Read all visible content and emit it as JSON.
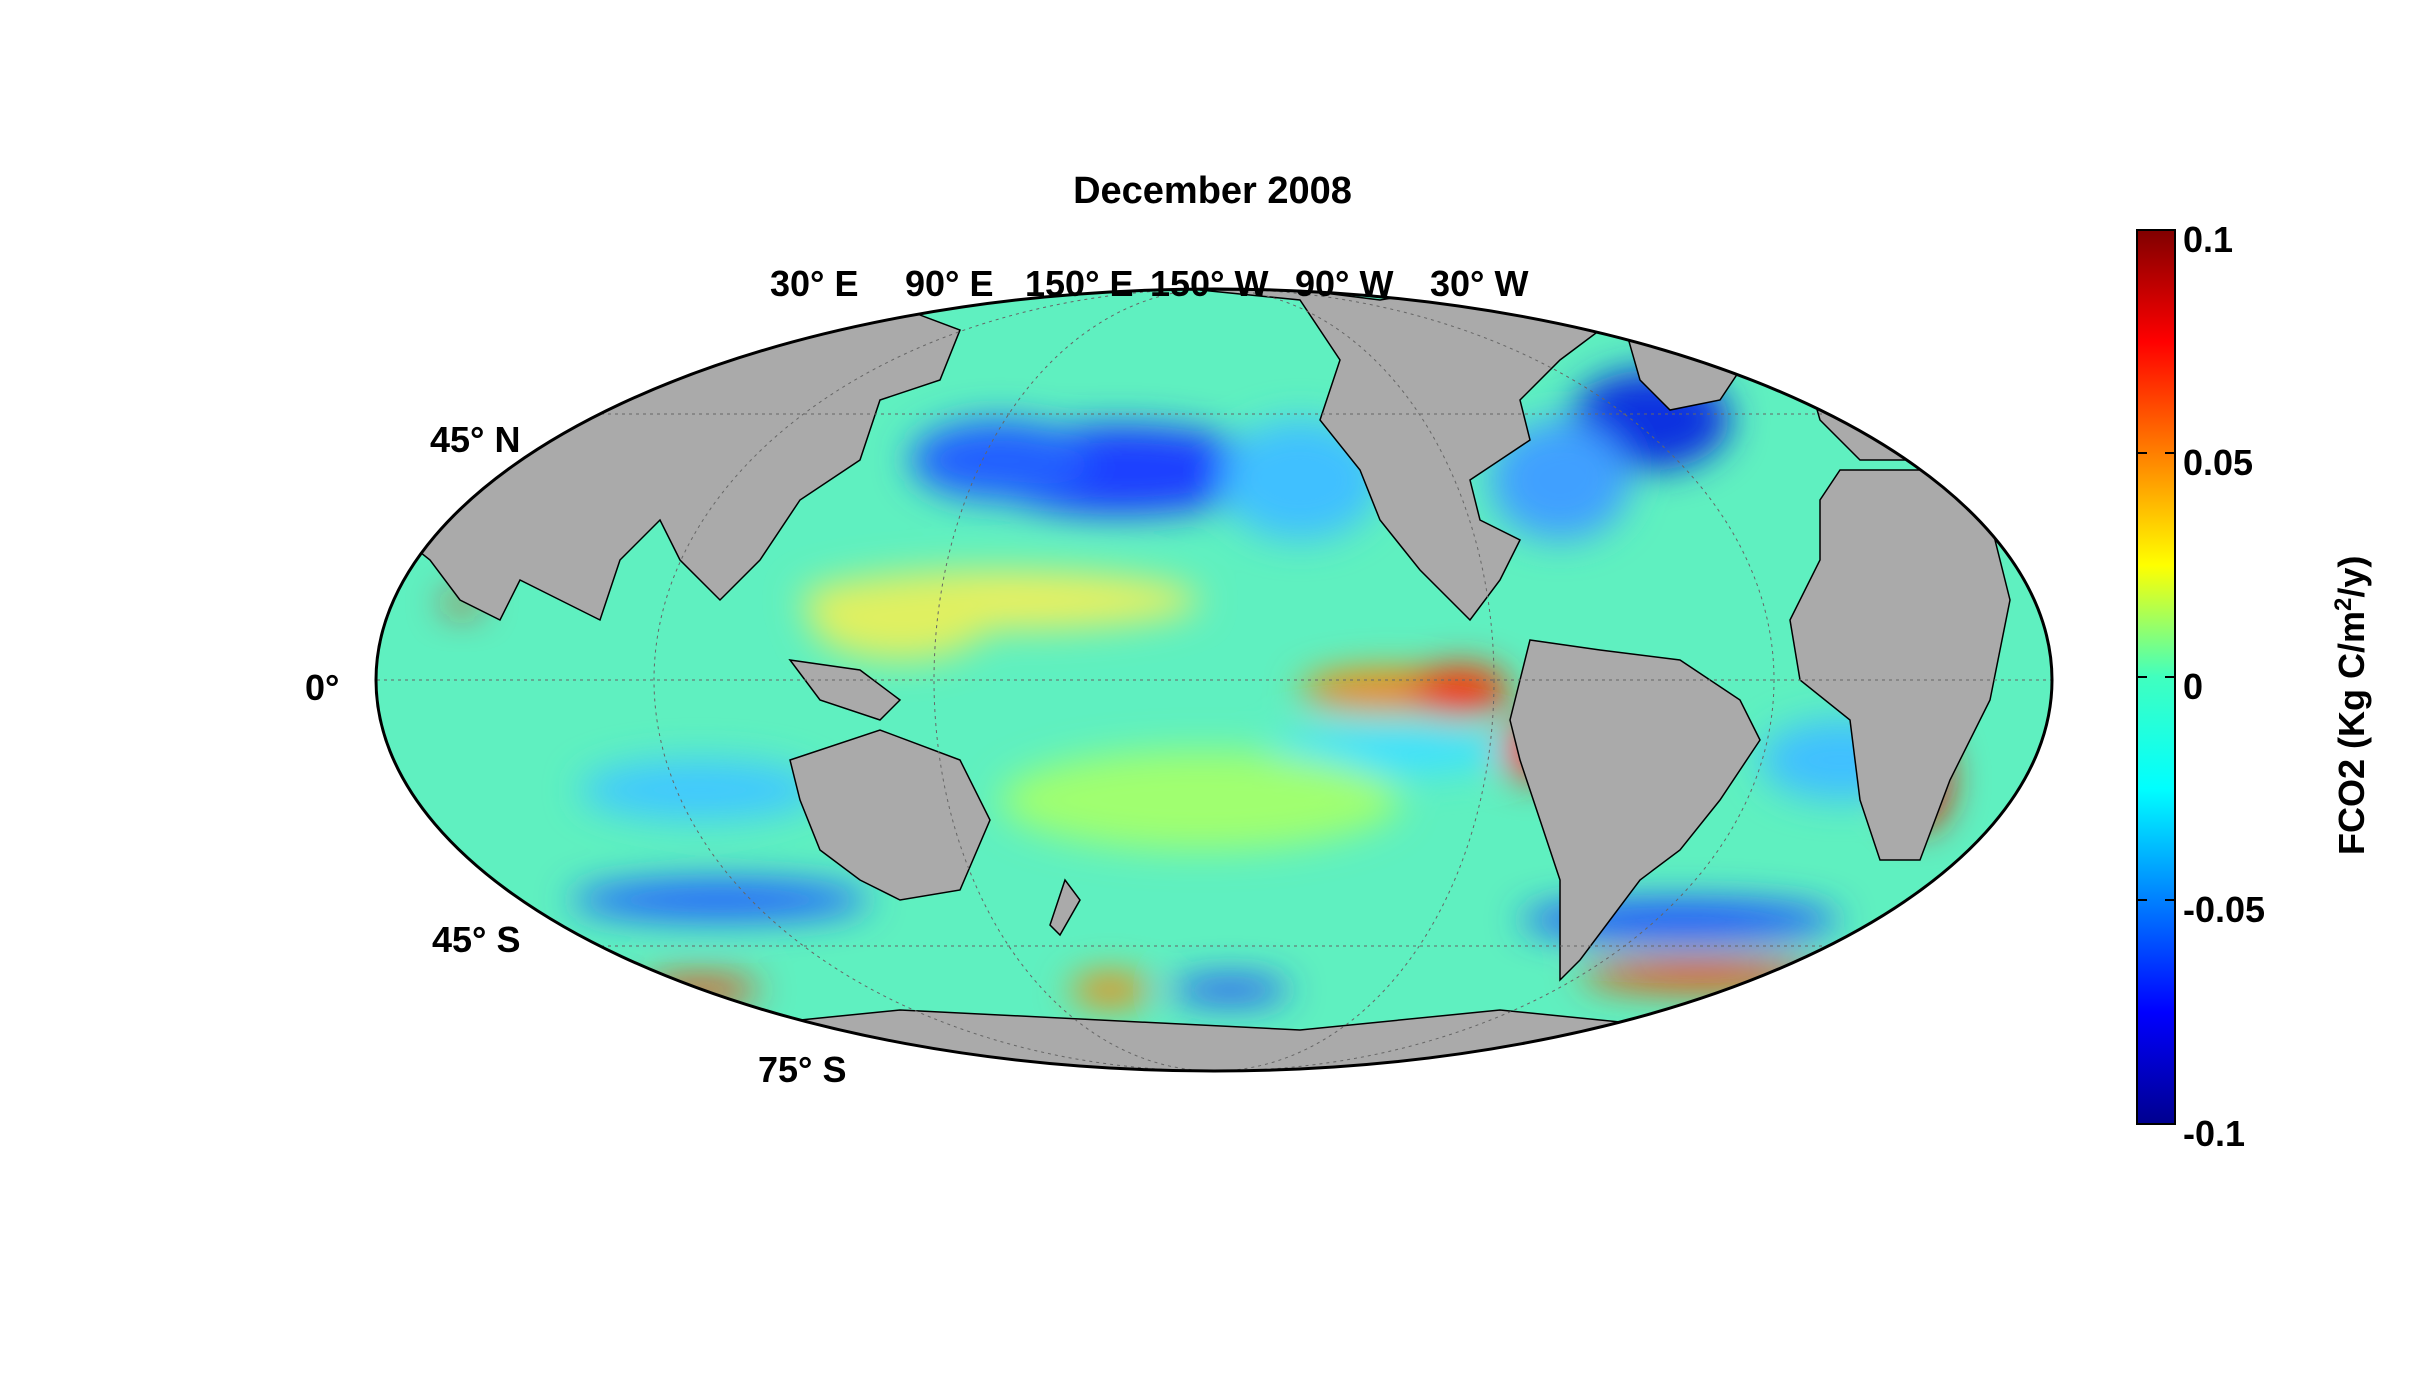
{
  "title": "December 2008",
  "projection": "Mollweide",
  "meridian_labels": [
    "30° E",
    "90° E",
    "150° E",
    "150° W",
    "90° W",
    "30° W"
  ],
  "parallel_labels": [
    "45° N",
    "0°",
    "45° S",
    "75° S"
  ],
  "colorbar": {
    "label_prefix": "FCO2 (Kg C/m",
    "label_sup": "2",
    "label_suffix": "/y)",
    "ticks": [
      "0.1",
      "0.05",
      "0",
      "-0.05",
      "-0.1"
    ],
    "range": [
      -0.1,
      0.1
    ],
    "colormap": "jet"
  },
  "colors": {
    "land": "#aaaaaa",
    "no_data": "#ffffff",
    "ocean_background": "#33e6b3"
  }
}
